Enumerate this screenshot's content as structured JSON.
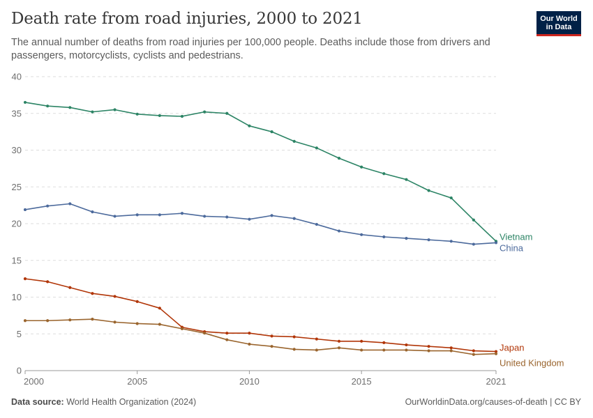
{
  "header": {
    "title": "Death rate from road injuries, 2000 to 2021",
    "subtitle": "The annual number of deaths from road injuries per 100,000 people. Deaths include those from drivers and passengers, motorcyclists, cyclists and pedestrians."
  },
  "logo": {
    "line1": "Our World",
    "line2": "in Data"
  },
  "footer": {
    "source_label": "Data source:",
    "source_text": "World Health Organization (2024)",
    "url_text": "OurWorldinData.org/causes-of-death | CC BY"
  },
  "colors": {
    "Vietnam": "#2c8465",
    "China": "#4c6a9c",
    "Japan": "#b13507",
    "United Kingdom": "#9a652e"
  },
  "chart_data": {
    "type": "line",
    "title": "Death rate from road injuries, 2000 to 2021",
    "xlabel": "",
    "ylabel": "",
    "xlim": [
      2000,
      2021
    ],
    "ylim": [
      0,
      40
    ],
    "x_ticks": [
      "2000",
      "2005",
      "2010",
      "2015",
      "2021"
    ],
    "y_ticks": [
      "0",
      "5",
      "10",
      "15",
      "20",
      "25",
      "30",
      "35",
      "40"
    ],
    "grid": true,
    "legend": "inline labels at line ends",
    "x": [
      2000,
      2001,
      2002,
      2003,
      2004,
      2005,
      2006,
      2007,
      2008,
      2009,
      2010,
      2011,
      2012,
      2013,
      2014,
      2015,
      2016,
      2017,
      2018,
      2019,
      2020,
      2021
    ],
    "series": [
      {
        "name": "Vietnam",
        "values": [
          36.5,
          36.0,
          35.8,
          35.2,
          35.5,
          34.9,
          34.7,
          34.6,
          35.2,
          35.0,
          33.3,
          32.5,
          31.2,
          30.3,
          28.9,
          27.7,
          26.8,
          26.0,
          24.5,
          23.5,
          20.5,
          17.6
        ]
      },
      {
        "name": "China",
        "values": [
          21.9,
          22.4,
          22.7,
          21.6,
          21.0,
          21.2,
          21.2,
          21.4,
          21.0,
          20.9,
          20.6,
          21.1,
          20.7,
          19.9,
          19.0,
          18.5,
          18.2,
          18.0,
          17.8,
          17.6,
          17.2,
          17.4
        ]
      },
      {
        "name": "Japan",
        "values": [
          12.5,
          12.1,
          11.3,
          10.5,
          10.1,
          9.4,
          8.5,
          5.9,
          5.3,
          5.1,
          5.1,
          4.7,
          4.6,
          4.3,
          4.0,
          4.0,
          3.8,
          3.5,
          3.3,
          3.1,
          2.7,
          2.6
        ]
      },
      {
        "name": "United Kingdom",
        "values": [
          6.8,
          6.8,
          6.9,
          7.0,
          6.6,
          6.4,
          6.3,
          5.7,
          5.1,
          4.2,
          3.6,
          3.3,
          2.9,
          2.8,
          3.1,
          2.8,
          2.8,
          2.8,
          2.7,
          2.7,
          2.2,
          2.3
        ]
      }
    ]
  }
}
